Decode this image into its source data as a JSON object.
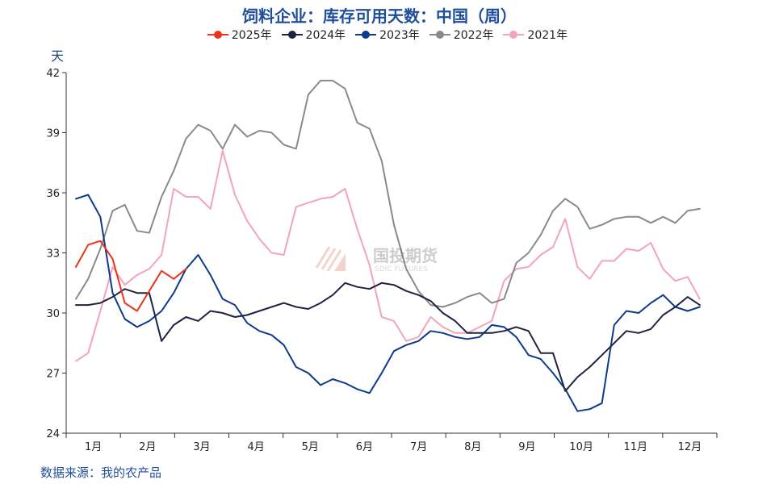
{
  "chart_data": {
    "type": "line",
    "title": "饲料企业：库存可用天数：中国（周）",
    "ylabel": "天",
    "source": "数据来源：我的农产品",
    "watermark": {
      "name": "国投期货",
      "sub": "SDIC FUTURES"
    },
    "ylim": [
      24,
      42
    ],
    "yticks": [
      "24",
      "27",
      "30",
      "33",
      "36",
      "39",
      "42"
    ],
    "xlim": [
      1,
      53
    ],
    "x_tick_labels": [
      "1月",
      "2月",
      "3月",
      "4月",
      "5月",
      "6月",
      "7月",
      "8月",
      "9月",
      "10月",
      "11月",
      "12月"
    ],
    "grid": false,
    "legend_position": "top-center",
    "series": [
      {
        "name": "2025年",
        "color": "#e8341c",
        "x": [
          1,
          2,
          3,
          4,
          5,
          6,
          7,
          8,
          9,
          10
        ],
        "y": [
          32.3,
          33.4,
          33.6,
          32.7,
          30.5,
          30.1,
          31.1,
          32.1,
          31.7,
          32.2
        ]
      },
      {
        "name": "2024年",
        "color": "#1e2342",
        "x": [
          1,
          2,
          3,
          4,
          5,
          6,
          7,
          8,
          9,
          10,
          11,
          12,
          13,
          14,
          15,
          16,
          17,
          18,
          19,
          20,
          21,
          22,
          23,
          24,
          25,
          26,
          27,
          28,
          29,
          30,
          31,
          32,
          33,
          34,
          35,
          36,
          37,
          38,
          39,
          40,
          41,
          42,
          43,
          44,
          45,
          46,
          47,
          48,
          49,
          50,
          51,
          52,
          53
        ],
        "y": [
          30.4,
          30.4,
          30.5,
          30.8,
          31.2,
          31.0,
          31.0,
          28.6,
          29.4,
          29.8,
          29.6,
          30.1,
          30.0,
          29.8,
          29.9,
          30.1,
          30.3,
          30.5,
          30.3,
          30.2,
          30.5,
          30.9,
          31.5,
          31.3,
          31.2,
          31.5,
          31.4,
          31.1,
          30.9,
          30.6,
          30.0,
          29.6,
          29.0,
          29.0,
          29.0,
          29.1,
          29.3,
          29.1,
          28.0,
          28.0,
          26.1,
          26.8,
          27.3,
          27.9,
          28.5,
          29.1,
          29.0,
          29.2,
          29.9,
          30.3,
          30.8,
          30.4,
          null
        ]
      },
      {
        "name": "2023年",
        "color": "#0d3a8c",
        "x": [
          1,
          2,
          3,
          4,
          5,
          6,
          7,
          8,
          9,
          10,
          11,
          12,
          13,
          14,
          15,
          16,
          17,
          18,
          19,
          20,
          21,
          22,
          23,
          24,
          25,
          26,
          27,
          28,
          29,
          30,
          31,
          32,
          33,
          34,
          35,
          36,
          37,
          38,
          39,
          40,
          41,
          42,
          43,
          44,
          45,
          46,
          47,
          48,
          49,
          50,
          51,
          52,
          53
        ],
        "y": [
          35.7,
          35.9,
          34.8,
          31.0,
          29.7,
          29.3,
          29.6,
          30.1,
          31.0,
          32.2,
          32.9,
          31.9,
          30.7,
          30.4,
          29.5,
          29.1,
          28.9,
          28.4,
          27.3,
          27.0,
          26.4,
          26.7,
          26.5,
          26.2,
          26.0,
          27.0,
          28.1,
          28.4,
          28.6,
          29.1,
          29.0,
          28.8,
          28.7,
          28.8,
          29.4,
          29.3,
          28.8,
          27.9,
          27.7,
          27.0,
          26.2,
          25.1,
          25.2,
          25.5,
          29.4,
          30.1,
          30.0,
          30.5,
          30.9,
          30.3,
          30.1,
          30.3,
          null
        ]
      },
      {
        "name": "2022年",
        "color": "#8a8a8a",
        "x": [
          1,
          2,
          3,
          4,
          5,
          6,
          7,
          8,
          9,
          10,
          11,
          12,
          13,
          14,
          15,
          16,
          17,
          18,
          19,
          20,
          21,
          22,
          23,
          24,
          25,
          26,
          27,
          28,
          29,
          30,
          31,
          32,
          33,
          34,
          35,
          36,
          37,
          38,
          39,
          40,
          41,
          42,
          43,
          44,
          45,
          46,
          47,
          48,
          49,
          50,
          51,
          52,
          53
        ],
        "y": [
          30.7,
          31.7,
          33.2,
          35.1,
          35.4,
          34.1,
          34.0,
          35.8,
          37.1,
          38.7,
          39.4,
          39.1,
          38.2,
          39.4,
          38.8,
          39.1,
          39.0,
          38.4,
          38.2,
          40.9,
          41.6,
          41.6,
          41.2,
          39.5,
          39.2,
          37.6,
          34.4,
          32.2,
          31.1,
          30.4,
          30.3,
          30.5,
          30.8,
          31.0,
          30.5,
          30.7,
          32.5,
          33.0,
          33.9,
          35.1,
          35.7,
          35.3,
          34.2,
          34.4,
          34.7,
          34.8,
          34.8,
          34.5,
          34.8,
          34.5,
          35.1,
          35.2,
          null
        ]
      },
      {
        "name": "2021年",
        "color": "#f4a3bd",
        "x": [
          1,
          2,
          3,
          4,
          5,
          6,
          7,
          8,
          9,
          10,
          11,
          12,
          13,
          14,
          15,
          16,
          17,
          18,
          19,
          20,
          21,
          22,
          23,
          24,
          25,
          26,
          27,
          28,
          29,
          30,
          31,
          32,
          33,
          34,
          35,
          36,
          37,
          38,
          39,
          40,
          41,
          42,
          43,
          44,
          45,
          46,
          47,
          48,
          49,
          50,
          51,
          52,
          53
        ],
        "y": [
          27.6,
          28.0,
          30.1,
          32.3,
          31.4,
          31.9,
          32.2,
          32.9,
          36.2,
          35.8,
          35.8,
          35.2,
          38.1,
          35.9,
          34.6,
          33.7,
          33.0,
          32.9,
          35.3,
          35.5,
          35.7,
          35.8,
          36.2,
          34.2,
          32.4,
          29.8,
          29.6,
          28.6,
          28.8,
          29.8,
          29.3,
          29.0,
          29.0,
          29.3,
          29.6,
          31.6,
          32.2,
          32.3,
          32.9,
          33.3,
          34.7,
          32.3,
          31.7,
          32.6,
          32.6,
          33.2,
          33.1,
          33.5,
          32.2,
          31.6,
          31.8,
          30.7,
          null
        ]
      }
    ]
  }
}
